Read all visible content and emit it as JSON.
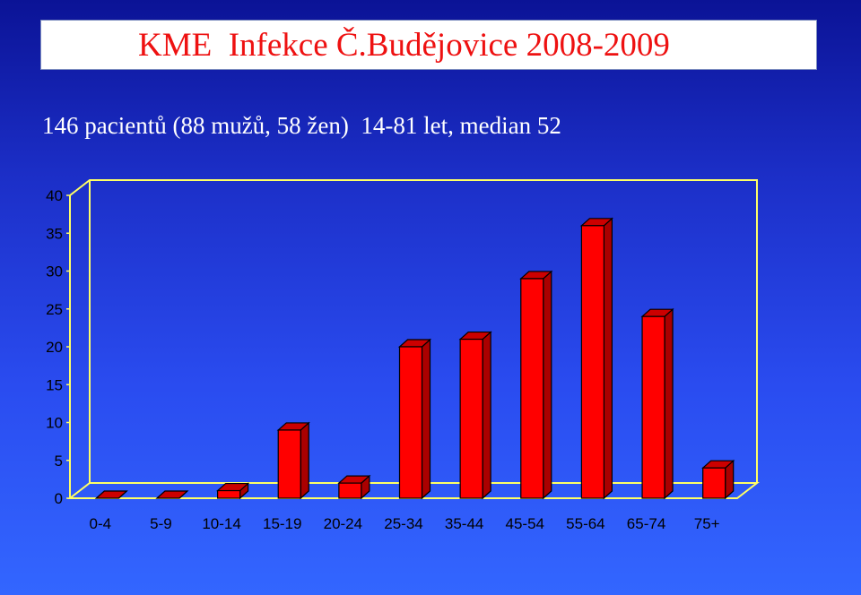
{
  "title": "KME  Infekce Č.Budějovice 2008-2009",
  "subtitle": "146 pacientů (88 mužů, 58 žen)  14-81 let, median 52",
  "colors": {
    "background_top": "#0b1396",
    "background_bottom": "#3366ff",
    "title_text": "#ee1111",
    "bar_front": "#ff0000",
    "bar_side": "#aa0000",
    "bar_top": "#cc0000",
    "axis_line": "#ffff66"
  },
  "chart_data": {
    "type": "bar",
    "style": "3d-column",
    "categories": [
      "0-4",
      "5-9",
      "10-14",
      "15-19",
      "20-24",
      "25-34",
      "35-44",
      "45-54",
      "55-64",
      "65-74",
      "75+"
    ],
    "values": [
      0,
      0,
      1,
      9,
      2,
      20,
      21,
      29,
      36,
      24,
      4
    ],
    "yticks": [
      0,
      5,
      10,
      15,
      20,
      25,
      30,
      35,
      40
    ],
    "ylim": [
      0,
      40
    ],
    "grid": false,
    "legend": "none"
  }
}
